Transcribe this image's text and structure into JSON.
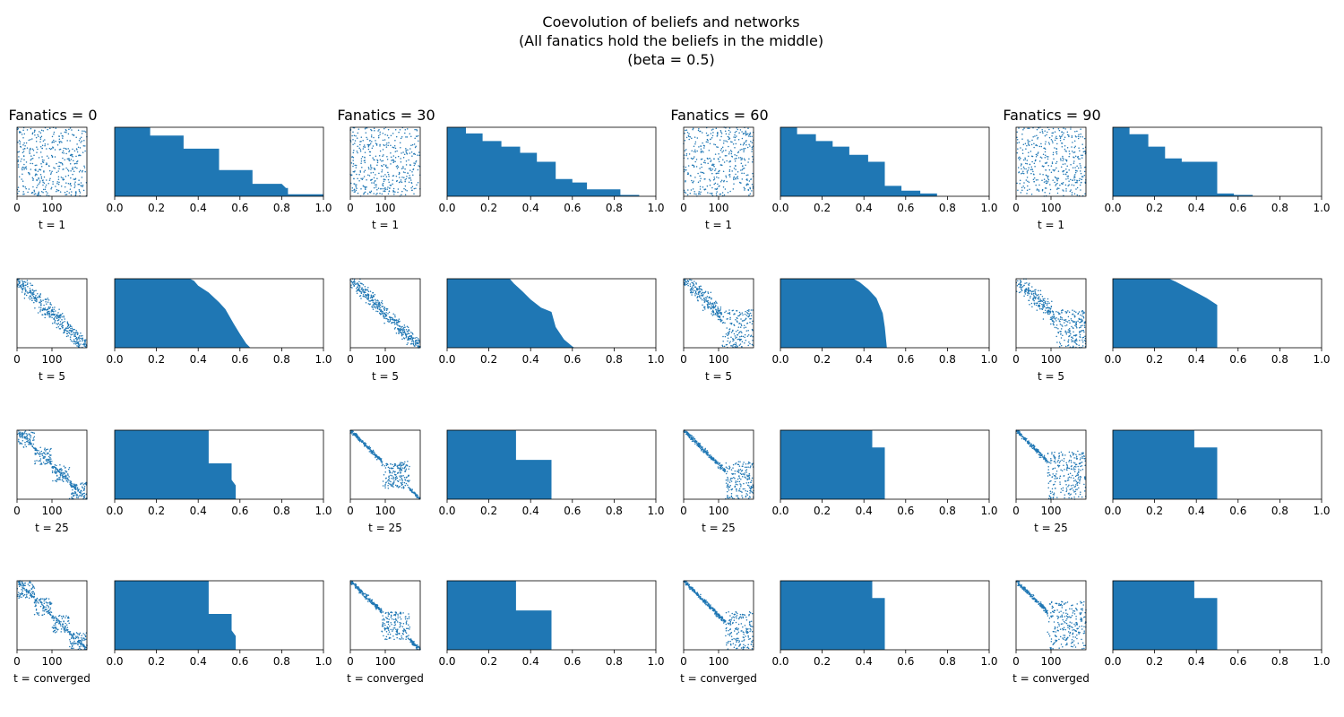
{
  "chart_data": {
    "type": "bar",
    "title_lines": [
      "Coevolution of beliefs and networks",
      "(All fanatics hold the beliefs in the middle)",
      "(beta = 0.5)"
    ],
    "scatter_xticks": [
      "0",
      "100"
    ],
    "scatter_xlim": [
      0,
      200
    ],
    "hist_xticks": [
      "0.0",
      "0.2",
      "0.4",
      "0.6",
      "0.8",
      "1.0"
    ],
    "hist_xlim": [
      0,
      1
    ],
    "color": "#1f77b4",
    "panels": [
      {
        "title": "Fanatics = 0",
        "rows": [
          {
            "label": "t = 1",
            "scatter": {
              "kind": "random",
              "seed": 11
            },
            "profile": [
              [
                0,
                1
              ],
              [
                0.17,
                1
              ],
              [
                0.17,
                0.88
              ],
              [
                0.33,
                0.88
              ],
              [
                0.33,
                0.69
              ],
              [
                0.5,
                0.69
              ],
              [
                0.5,
                0.38
              ],
              [
                0.66,
                0.38
              ],
              [
                0.66,
                0.18
              ],
              [
                0.8,
                0.18
              ],
              [
                0.82,
                0.12
              ],
              [
                0.83,
                0.12
              ],
              [
                0.83,
                0.03
              ],
              [
                1,
                0.03
              ]
            ]
          },
          {
            "label": "t = 5",
            "scatter": {
              "kind": "band",
              "seed": 12,
              "width": 0.25
            },
            "profile": [
              [
                0,
                1
              ],
              [
                0.36,
                1
              ],
              [
                0.38,
                0.97
              ],
              [
                0.4,
                0.9
              ],
              [
                0.45,
                0.8
              ],
              [
                0.5,
                0.66
              ],
              [
                0.53,
                0.56
              ],
              [
                0.57,
                0.35
              ],
              [
                0.6,
                0.2
              ],
              [
                0.63,
                0.06
              ],
              [
                0.65,
                0
              ],
              [
                1,
                0
              ]
            ]
          },
          {
            "label": "t = 25",
            "scatter": {
              "kind": "blocks",
              "seed": 13,
              "width": 0.06
            },
            "profile": [
              [
                0,
                1
              ],
              [
                0.45,
                1
              ],
              [
                0.45,
                0.52
              ],
              [
                0.56,
                0.52
              ],
              [
                0.56,
                0.28
              ],
              [
                0.58,
                0.2
              ],
              [
                0.58,
                0
              ],
              [
                1,
                0
              ]
            ]
          },
          {
            "label": "t = converged",
            "scatter": {
              "kind": "blocks",
              "seed": 14,
              "width": 0.06
            },
            "profile": [
              [
                0,
                1
              ],
              [
                0.45,
                1
              ],
              [
                0.45,
                0.52
              ],
              [
                0.56,
                0.52
              ],
              [
                0.56,
                0.28
              ],
              [
                0.58,
                0.2
              ],
              [
                0.58,
                0
              ],
              [
                1,
                0
              ]
            ]
          }
        ]
      },
      {
        "title": "Fanatics = 30",
        "rows": [
          {
            "label": "t = 1",
            "scatter": {
              "kind": "random",
              "seed": 21
            },
            "profile": [
              [
                0,
                1
              ],
              [
                0.09,
                1
              ],
              [
                0.09,
                0.91
              ],
              [
                0.17,
                0.91
              ],
              [
                0.17,
                0.8
              ],
              [
                0.26,
                0.8
              ],
              [
                0.26,
                0.72
              ],
              [
                0.35,
                0.72
              ],
              [
                0.35,
                0.63
              ],
              [
                0.43,
                0.63
              ],
              [
                0.43,
                0.5
              ],
              [
                0.52,
                0.5
              ],
              [
                0.52,
                0.25
              ],
              [
                0.6,
                0.25
              ],
              [
                0.6,
                0.2
              ],
              [
                0.67,
                0.2
              ],
              [
                0.67,
                0.1
              ],
              [
                0.83,
                0.1
              ],
              [
                0.83,
                0.02
              ],
              [
                0.92,
                0.02
              ],
              [
                0.92,
                0
              ],
              [
                1,
                0
              ]
            ]
          },
          {
            "label": "t = 5",
            "scatter": {
              "kind": "band",
              "seed": 22,
              "width": 0.2
            },
            "profile": [
              [
                0,
                1
              ],
              [
                0.3,
                1
              ],
              [
                0.32,
                0.93
              ],
              [
                0.36,
                0.82
              ],
              [
                0.4,
                0.7
              ],
              [
                0.45,
                0.58
              ],
              [
                0.5,
                0.52
              ],
              [
                0.52,
                0.3
              ],
              [
                0.56,
                0.12
              ],
              [
                0.6,
                0.02
              ],
              [
                0.61,
                0
              ],
              [
                1,
                0
              ]
            ]
          },
          {
            "label": "t = 25",
            "scatter": {
              "kind": "blocksMid",
              "seed": 23,
              "width": 0.06
            },
            "profile": [
              [
                0,
                1
              ],
              [
                0.33,
                1
              ],
              [
                0.33,
                0.57
              ],
              [
                0.5,
                0.57
              ],
              [
                0.5,
                0
              ],
              [
                1,
                0
              ]
            ]
          },
          {
            "label": "t = converged",
            "scatter": {
              "kind": "blocksMid",
              "seed": 24,
              "width": 0.06
            },
            "profile": [
              [
                0,
                1
              ],
              [
                0.33,
                1
              ],
              [
                0.33,
                0.57
              ],
              [
                0.5,
                0.57
              ],
              [
                0.5,
                0
              ],
              [
                1,
                0
              ]
            ]
          }
        ]
      },
      {
        "title": "Fanatics = 60",
        "rows": [
          {
            "label": "t = 1",
            "scatter": {
              "kind": "random",
              "seed": 31
            },
            "profile": [
              [
                0,
                1
              ],
              [
                0.08,
                1
              ],
              [
                0.08,
                0.9
              ],
              [
                0.17,
                0.9
              ],
              [
                0.17,
                0.8
              ],
              [
                0.25,
                0.8
              ],
              [
                0.25,
                0.72
              ],
              [
                0.33,
                0.72
              ],
              [
                0.33,
                0.6
              ],
              [
                0.42,
                0.6
              ],
              [
                0.42,
                0.5
              ],
              [
                0.5,
                0.5
              ],
              [
                0.5,
                0.15
              ],
              [
                0.58,
                0.15
              ],
              [
                0.58,
                0.08
              ],
              [
                0.67,
                0.08
              ],
              [
                0.67,
                0.04
              ],
              [
                0.75,
                0.04
              ],
              [
                0.75,
                0
              ],
              [
                1,
                0
              ]
            ]
          },
          {
            "label": "t = 5",
            "scatter": {
              "kind": "bandLow",
              "seed": 32,
              "width": 0.22
            },
            "profile": [
              [
                0,
                1
              ],
              [
                0.35,
                1
              ],
              [
                0.38,
                0.95
              ],
              [
                0.42,
                0.85
              ],
              [
                0.46,
                0.72
              ],
              [
                0.49,
                0.5
              ],
              [
                0.5,
                0.3
              ],
              [
                0.51,
                0
              ],
              [
                1,
                0
              ]
            ]
          },
          {
            "label": "t = 25",
            "scatter": {
              "kind": "fanLow",
              "seed": 33,
              "width": 0.06
            },
            "profile": [
              [
                0,
                1
              ],
              [
                0.44,
                1
              ],
              [
                0.44,
                0.75
              ],
              [
                0.5,
                0.75
              ],
              [
                0.5,
                0
              ],
              [
                1,
                0
              ]
            ]
          },
          {
            "label": "t = converged",
            "scatter": {
              "kind": "fanLow",
              "seed": 34,
              "width": 0.06
            },
            "profile": [
              [
                0,
                1
              ],
              [
                0.44,
                1
              ],
              [
                0.44,
                0.75
              ],
              [
                0.5,
                0.75
              ],
              [
                0.5,
                0
              ],
              [
                1,
                0
              ]
            ]
          }
        ]
      },
      {
        "title": "Fanatics = 90",
        "rows": [
          {
            "label": "t = 1",
            "scatter": {
              "kind": "random",
              "seed": 41
            },
            "profile": [
              [
                0,
                1
              ],
              [
                0.08,
                1
              ],
              [
                0.08,
                0.9
              ],
              [
                0.17,
                0.9
              ],
              [
                0.17,
                0.72
              ],
              [
                0.25,
                0.72
              ],
              [
                0.25,
                0.55
              ],
              [
                0.33,
                0.55
              ],
              [
                0.33,
                0.5
              ],
              [
                0.5,
                0.5
              ],
              [
                0.5,
                0.04
              ],
              [
                0.58,
                0.04
              ],
              [
                0.58,
                0.02
              ],
              [
                0.67,
                0.02
              ],
              [
                0.67,
                0
              ],
              [
                1,
                0
              ]
            ]
          },
          {
            "label": "t = 5",
            "scatter": {
              "kind": "bandLow",
              "seed": 42,
              "width": 0.25
            },
            "profile": [
              [
                0,
                1
              ],
              [
                0.27,
                1
              ],
              [
                0.3,
                0.96
              ],
              [
                0.35,
                0.88
              ],
              [
                0.4,
                0.8
              ],
              [
                0.45,
                0.72
              ],
              [
                0.5,
                0.62
              ],
              [
                0.5,
                0
              ],
              [
                1,
                0
              ]
            ]
          },
          {
            "label": "t = 25",
            "scatter": {
              "kind": "fanLow2",
              "seed": 43,
              "width": 0.06
            },
            "profile": [
              [
                0,
                1
              ],
              [
                0.39,
                1
              ],
              [
                0.39,
                0.75
              ],
              [
                0.5,
                0.75
              ],
              [
                0.5,
                0
              ],
              [
                1,
                0
              ]
            ]
          },
          {
            "label": "t = converged",
            "scatter": {
              "kind": "fanLow2",
              "seed": 44,
              "width": 0.06
            },
            "profile": [
              [
                0,
                1
              ],
              [
                0.39,
                1
              ],
              [
                0.39,
                0.75
              ],
              [
                0.5,
                0.75
              ],
              [
                0.5,
                0
              ],
              [
                1,
                0
              ]
            ]
          }
        ]
      }
    ]
  }
}
